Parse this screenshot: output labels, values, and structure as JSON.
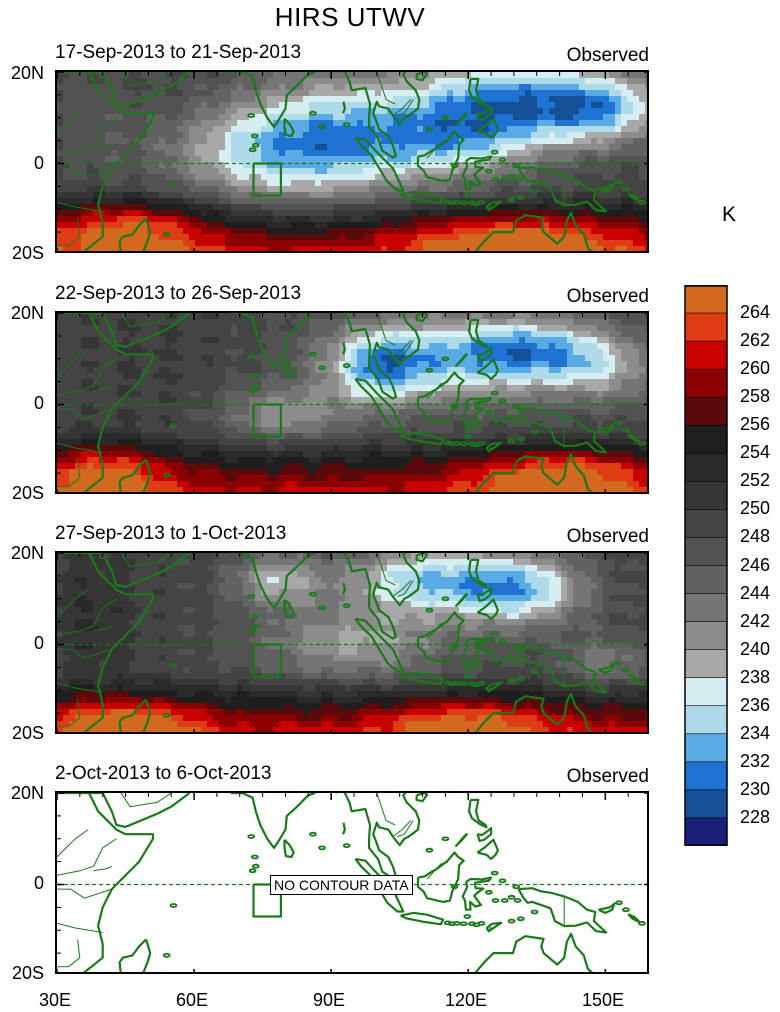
{
  "figure": {
    "title": "HIRS UTWV",
    "unit": "K",
    "no_data_label": "NO CONTOUR DATA"
  },
  "panels": [
    {
      "date_range": "17-Sep-2013 to 21-Sep-2013",
      "status": "Observed"
    },
    {
      "date_range": "22-Sep-2013 to 26-Sep-2013",
      "status": "Observed"
    },
    {
      "date_range": "27-Sep-2013 to 1-Oct-2013",
      "status": "Observed"
    },
    {
      "date_range": "2-Oct-2013 to 6-Oct-2013",
      "status": "Observed"
    }
  ],
  "axes": {
    "y_ticks": [
      "20N",
      "0",
      "20S"
    ],
    "x_ticks": [
      "30E",
      "60E",
      "90E",
      "120E",
      "150E"
    ],
    "lon_range": [
      30,
      160
    ],
    "lat_range": [
      -20,
      20
    ]
  },
  "colorbar": {
    "labels": [
      "264",
      "262",
      "260",
      "258",
      "256",
      "254",
      "252",
      "250",
      "248",
      "246",
      "244",
      "242",
      "240",
      "238",
      "236",
      "234",
      "232",
      "230",
      "228"
    ],
    "colors": [
      "#d2691e",
      "#e03c14",
      "#c80000",
      "#8b0000",
      "#5a0a0a",
      "#1e1e1e",
      "#2a2a2a",
      "#363636",
      "#444444",
      "#525252",
      "#626262",
      "#757575",
      "#8c8c8c",
      "#a8a8a8",
      "#d6eef2",
      "#aedaea",
      "#5aaae6",
      "#1e72d2",
      "#145096",
      "#1a1f78"
    ]
  },
  "colors": {
    "coast": "#1a7a1a",
    "equator": "#1a7a1a"
  }
}
